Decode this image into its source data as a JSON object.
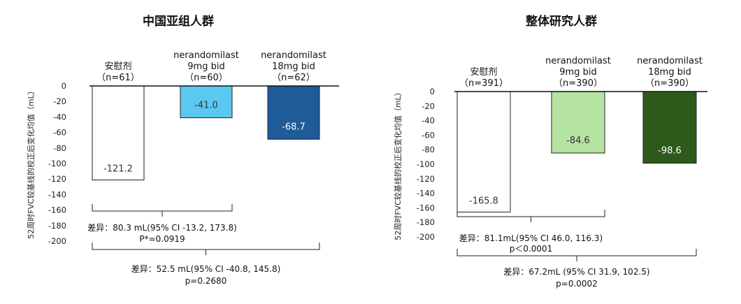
{
  "chart_data": [
    {
      "type": "bar",
      "title": "中国亚组人群",
      "ylabel": "52周时FVC较基线的校正后变化均值（mL）",
      "ylim": [
        -200,
        0
      ],
      "yticks": [
        0,
        -20,
        -40,
        -60,
        -80,
        -100,
        -120,
        -140,
        -160,
        -180,
        -200
      ],
      "grid": false,
      "categories": [
        [
          "安慰剂",
          "（n=61）"
        ],
        [
          "nerandomilast",
          "9mg bid",
          "（n=60）"
        ],
        [
          "nerandomilast",
          "18mg bid",
          "（n=62）"
        ]
      ],
      "values": [
        -121.2,
        -41.0,
        -68.7
      ],
      "value_labels": [
        "-121.2",
        "-41.0",
        "-68.7"
      ],
      "colors": [
        "#ffffff",
        "#5bc8f0",
        "#1f5a99"
      ],
      "label_colors": [
        "#333333",
        "#333333",
        "#ffffff"
      ],
      "comparisons": [
        {
          "from": 0,
          "to": 1,
          "lines": [
            "差异：80.3 mL(95% CI -13.2, 173.8)",
            "P*=0.0919"
          ]
        },
        {
          "from": 0,
          "to": 2,
          "lines": [
            "差异：52.5 mL(95% CI -40.8, 145.8)",
            "p=0.2680"
          ]
        }
      ]
    },
    {
      "type": "bar",
      "title": "整体研究人群",
      "ylabel": "52周时FVC较基线的校正后变化均值（mL）",
      "ylim": [
        -200,
        0
      ],
      "yticks": [
        0,
        -20,
        -40,
        -60,
        -80,
        -100,
        -120,
        -140,
        -160,
        -180,
        -200
      ],
      "grid": false,
      "categories": [
        [
          "安慰剂",
          "（n=391）"
        ],
        [
          "nerandomilast",
          "9mg bid",
          "（n=390）"
        ],
        [
          "nerandomilast",
          "18mg bid",
          "（n=390）"
        ]
      ],
      "values": [
        -165.8,
        -84.6,
        -98.6
      ],
      "value_labels": [
        "-165.8",
        "-84.6",
        "-98.6"
      ],
      "colors": [
        "#ffffff",
        "#b5e3a2",
        "#2d5a1b"
      ],
      "label_colors": [
        "#333333",
        "#333333",
        "#ffffff"
      ],
      "comparisons": [
        {
          "from": 0,
          "to": 1,
          "lines": [
            "差异：81.1mL(95% CI 46.0, 116.3)",
            "p＜0.0001"
          ]
        },
        {
          "from": 0,
          "to": 2,
          "lines": [
            "差异：67.2mL (95% CI 31.9, 102.5)",
            "p=0.0002"
          ]
        }
      ]
    }
  ]
}
